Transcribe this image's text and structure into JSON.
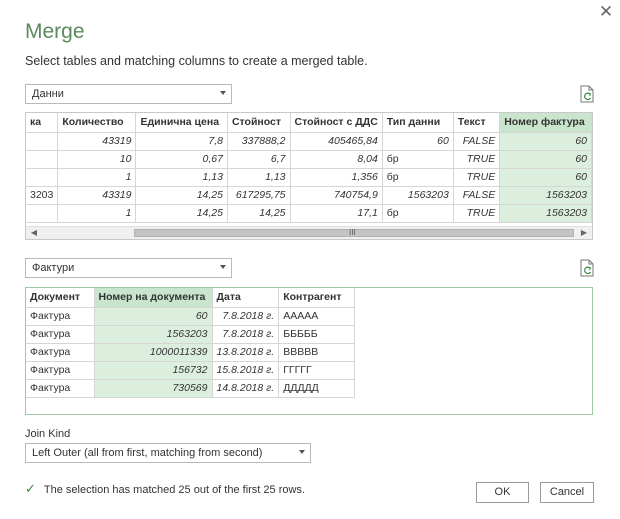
{
  "dialog": {
    "title": "Merge",
    "subtitle": "Select tables and matching columns to create a merged table.",
    "close_glyph": "✕"
  },
  "table1": {
    "dropdown_value": "Данни",
    "columns": [
      "ка",
      "Количество",
      "Единична цена",
      "Стойност",
      "Стойност с ДДС",
      "Тип данни",
      "Текст",
      "Номер фактура"
    ],
    "rows": [
      [
        "",
        "43319",
        "7,8",
        "337888,2",
        "405465,84",
        "60",
        "FALSE",
        "60"
      ],
      [
        "",
        "10",
        "0,67",
        "6,7",
        "8,04",
        "бр",
        "TRUE",
        "60"
      ],
      [
        "",
        "1",
        "1,13",
        "1,13",
        "1,356",
        "бр",
        "TRUE",
        "60"
      ],
      [
        "3203",
        "43319",
        "14,25",
        "617295,75",
        "740754,9",
        "1563203",
        "FALSE",
        "1563203"
      ],
      [
        "",
        "1",
        "14,25",
        "14,25",
        "17,1",
        "бр",
        "TRUE",
        "1563203"
      ]
    ],
    "scroll_left": "◀",
    "scroll_right": "▶",
    "scroll_grip": "III"
  },
  "table2": {
    "dropdown_value": "Фактури",
    "columns": [
      "Документ",
      "Номер на документа",
      "Дата",
      "Контрагент"
    ],
    "rows": [
      [
        "Фактура",
        "60",
        "7.8.2018 г.",
        "ААААА"
      ],
      [
        "Фактура",
        "1563203",
        "7.8.2018 г.",
        "БББББ"
      ],
      [
        "Фактура",
        "1000011339",
        "13.8.2018 г.",
        "ВВВВВ"
      ],
      [
        "Фактура",
        "156732",
        "15.8.2018 г.",
        "ГГГГГ"
      ],
      [
        "Фактура",
        "730569",
        "14.8.2018 г.",
        "ДДДДД"
      ]
    ]
  },
  "join": {
    "label": "Join Kind",
    "value": "Left Outer (all from first, matching from second)"
  },
  "status": {
    "check": "✓",
    "text": "The selection has matched 25 out of the first 25 rows."
  },
  "buttons": {
    "ok": "OK",
    "cancel": "Cancel"
  },
  "colors": {
    "title_green": "#5a8a5e",
    "highlight": "#dcefdf",
    "header_highlight": "#c9e5cd"
  }
}
